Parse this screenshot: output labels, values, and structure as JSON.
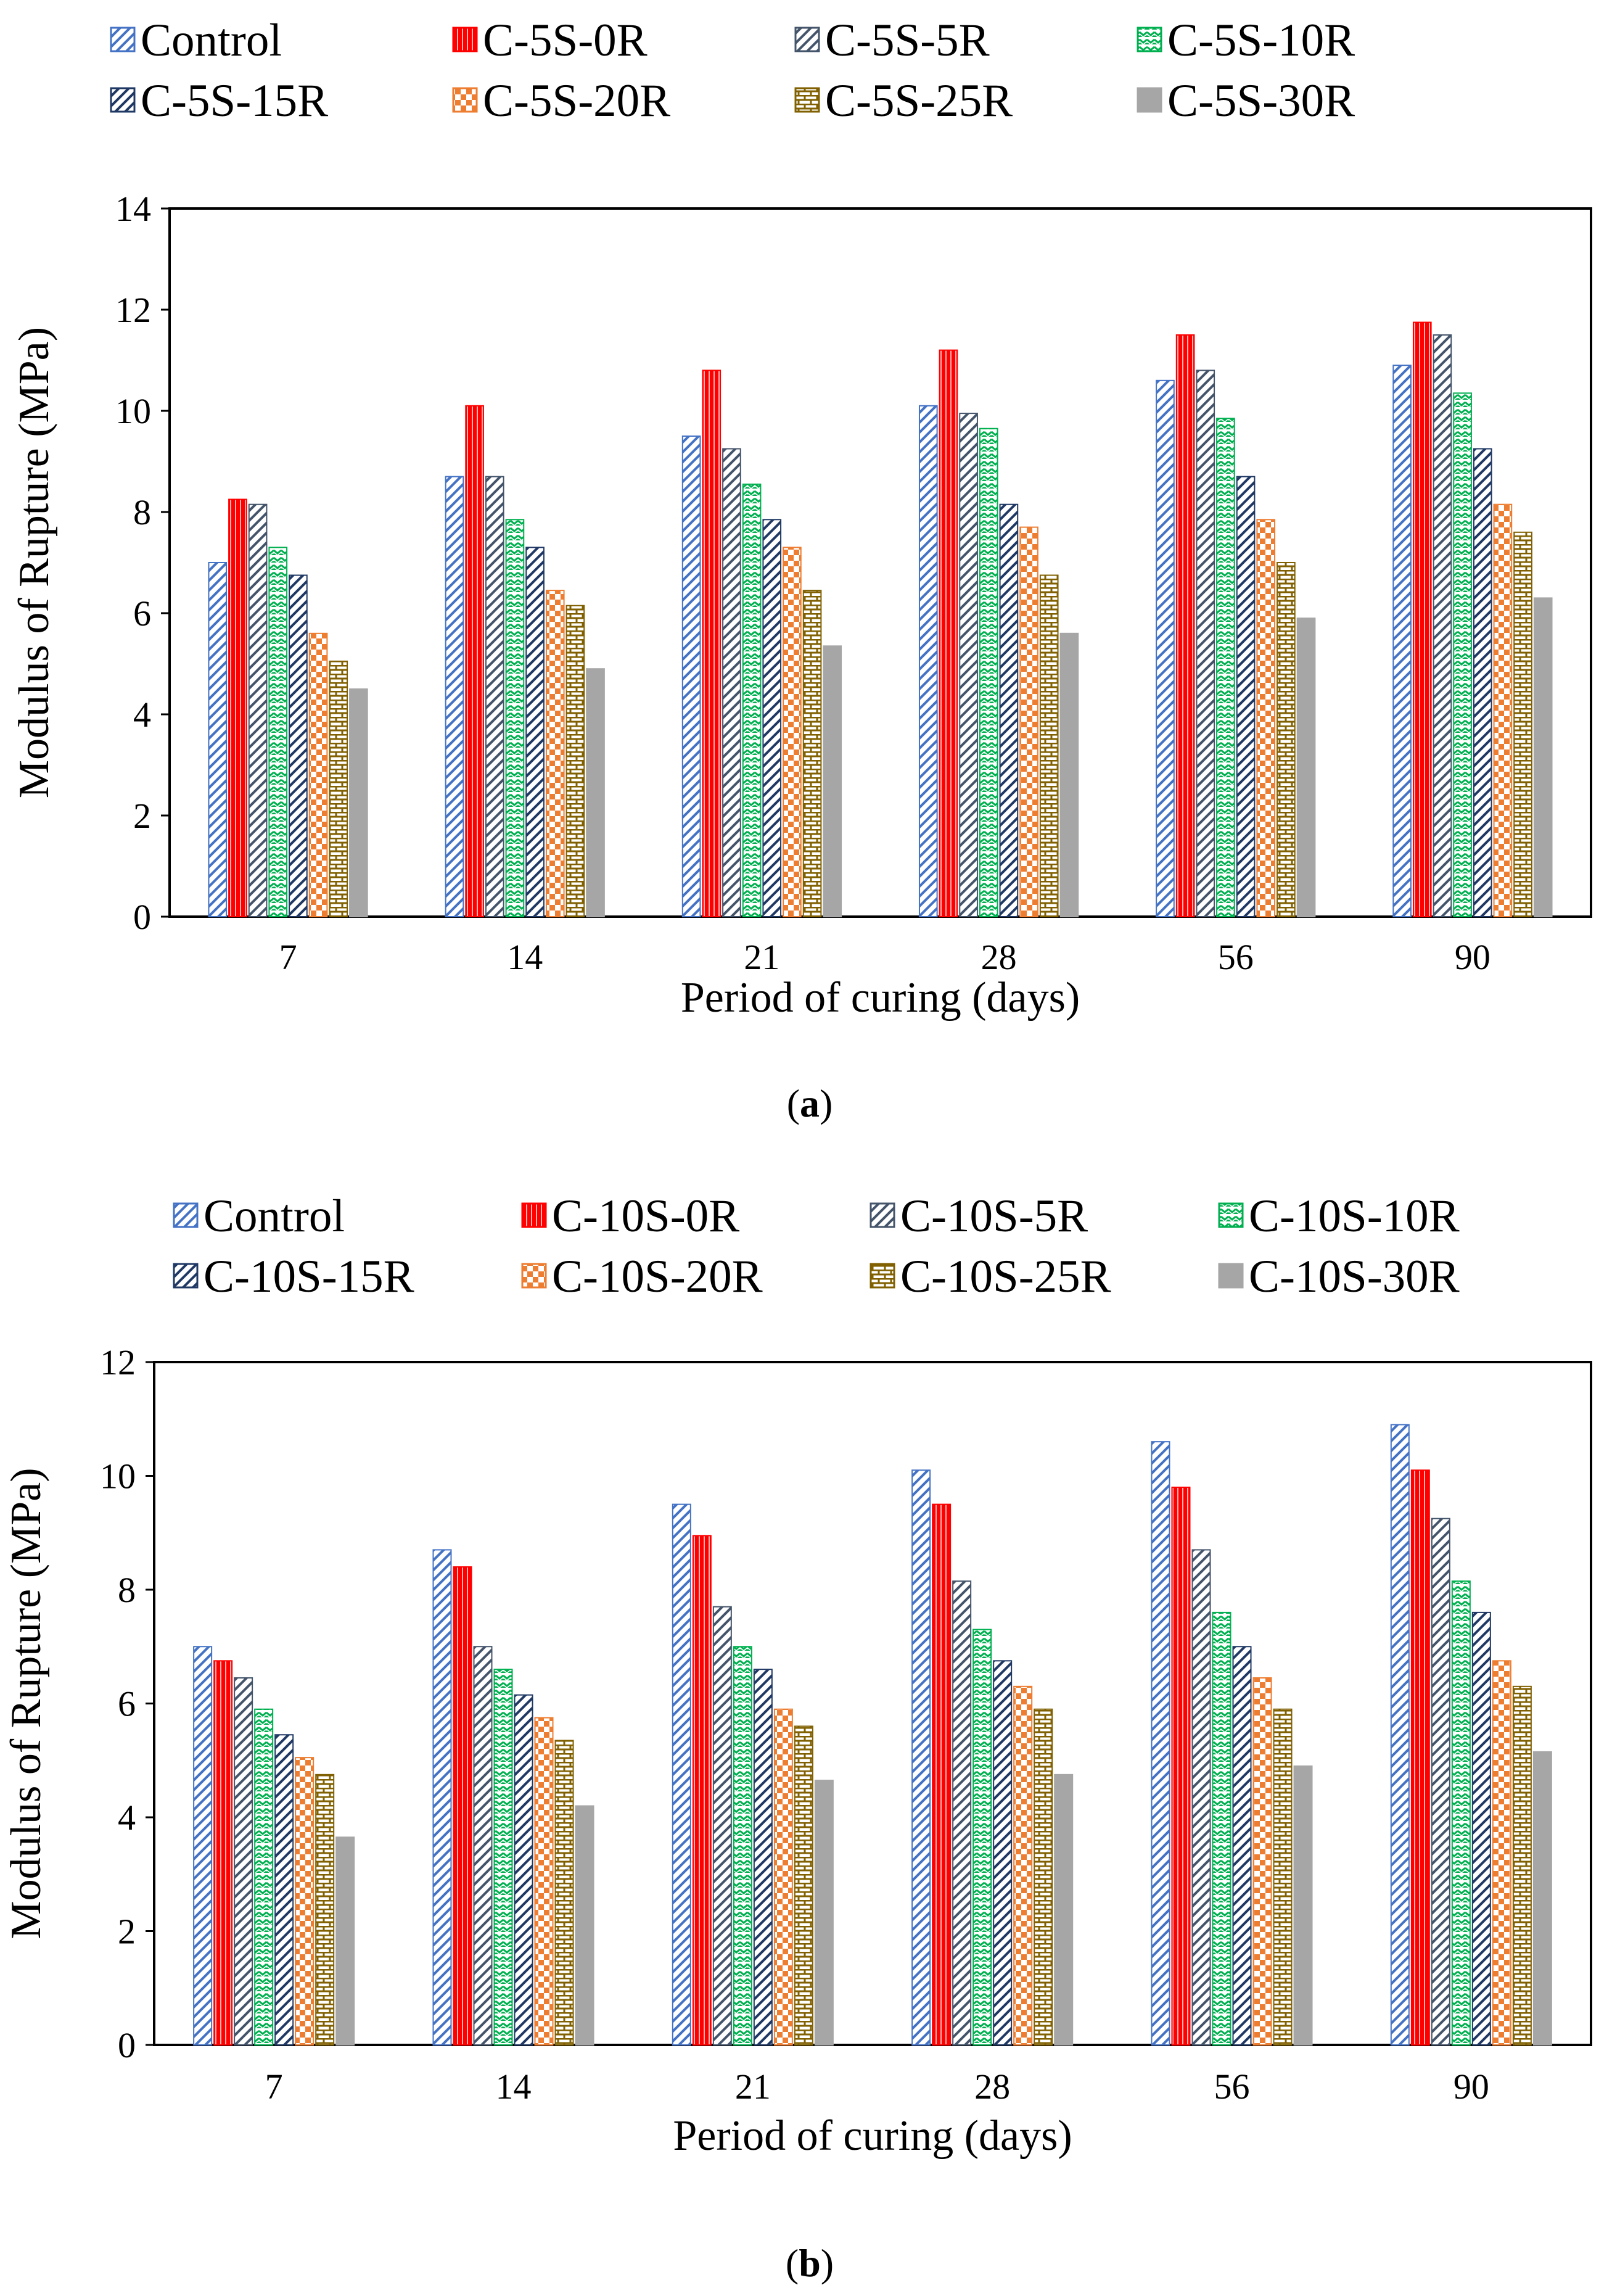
{
  "figure": {
    "panels": [
      {
        "caption": {
          "open": "(",
          "letter": "a",
          "close": ")"
        },
        "chart_data": {
          "type": "bar",
          "title": "",
          "xlabel": "Period of curing (days)",
          "ylabel": "Modulus of Rupture (MPa)",
          "ylim": [
            0,
            14
          ],
          "yticks": [
            0,
            2,
            4,
            6,
            8,
            10,
            12,
            14
          ],
          "grid": false,
          "legend_position": "top",
          "categories": [
            "7",
            "14",
            "21",
            "28",
            "56",
            "90"
          ],
          "series": [
            {
              "name": "Control",
              "color": "#4472C4",
              "pattern": "diag",
              "values": [
                7.0,
                8.7,
                9.5,
                10.1,
                10.6,
                10.9
              ]
            },
            {
              "name": "C-5S-0R",
              "color": "#FF0000",
              "pattern": "vlines",
              "values": [
                8.25,
                10.1,
                10.8,
                11.2,
                11.5,
                11.75
              ]
            },
            {
              "name": "C-5S-5R",
              "color": "#44546A",
              "pattern": "diag",
              "values": [
                8.15,
                8.7,
                9.25,
                9.95,
                10.8,
                11.5
              ]
            },
            {
              "name": "C-5S-10R",
              "color": "#00B050",
              "pattern": "zigzag",
              "values": [
                7.3,
                7.85,
                8.55,
                9.65,
                9.85,
                10.35
              ]
            },
            {
              "name": "C-5S-15R",
              "color": "#1F3864",
              "pattern": "diag",
              "values": [
                6.75,
                7.3,
                7.85,
                8.15,
                8.7,
                9.25
              ]
            },
            {
              "name": "C-5S-20R",
              "color": "#ED7D31",
              "pattern": "checker",
              "values": [
                5.6,
                6.45,
                7.3,
                7.7,
                7.85,
                8.15
              ]
            },
            {
              "name": "C-5S-25R",
              "color": "#806000",
              "pattern": "brick",
              "values": [
                5.05,
                6.15,
                6.45,
                6.75,
                7.0,
                7.6
              ]
            },
            {
              "name": "C-5S-30R",
              "color": "#A6A6A6",
              "pattern": "solid",
              "values": [
                4.5,
                4.9,
                5.35,
                5.6,
                5.9,
                6.3
              ]
            }
          ]
        }
      },
      {
        "caption": {
          "open": "(",
          "letter": "b",
          "close": ")"
        },
        "chart_data": {
          "type": "bar",
          "title": "",
          "xlabel": "Period of curing (days)",
          "ylabel": "Modulus of Rupture (MPa)",
          "ylim": [
            0,
            12
          ],
          "yticks": [
            0,
            2,
            4,
            6,
            8,
            10,
            12
          ],
          "grid": false,
          "legend_position": "top",
          "categories": [
            "7",
            "14",
            "21",
            "28",
            "56",
            "90"
          ],
          "series": [
            {
              "name": "Control",
              "color": "#4472C4",
              "pattern": "diag",
              "values": [
                7.0,
                8.7,
                9.5,
                10.1,
                10.6,
                10.9
              ]
            },
            {
              "name": "C-10S-0R",
              "color": "#FF0000",
              "pattern": "vlines",
              "values": [
                6.75,
                8.4,
                8.95,
                9.5,
                9.8,
                10.1
              ]
            },
            {
              "name": "C-10S-5R",
              "color": "#44546A",
              "pattern": "diag",
              "values": [
                6.45,
                7.0,
                7.7,
                8.15,
                8.7,
                9.25
              ]
            },
            {
              "name": "C-10S-10R",
              "color": "#00B050",
              "pattern": "zigzag",
              "values": [
                5.9,
                6.6,
                7.0,
                7.3,
                7.6,
                8.15
              ]
            },
            {
              "name": "C-10S-15R",
              "color": "#1F3864",
              "pattern": "diag",
              "values": [
                5.45,
                6.15,
                6.6,
                6.75,
                7.0,
                7.6
              ]
            },
            {
              "name": "C-10S-20R",
              "color": "#ED7D31",
              "pattern": "checker",
              "values": [
                5.05,
                5.75,
                5.9,
                6.3,
                6.45,
                6.75
              ]
            },
            {
              "name": "C-10S-25R",
              "color": "#806000",
              "pattern": "brick",
              "values": [
                4.75,
                5.35,
                5.6,
                5.9,
                5.9,
                6.3
              ]
            },
            {
              "name": "C-10S-30R",
              "color": "#A6A6A6",
              "pattern": "solid",
              "values": [
                3.65,
                4.2,
                4.65,
                4.75,
                4.9,
                5.15
              ]
            }
          ]
        }
      }
    ]
  }
}
